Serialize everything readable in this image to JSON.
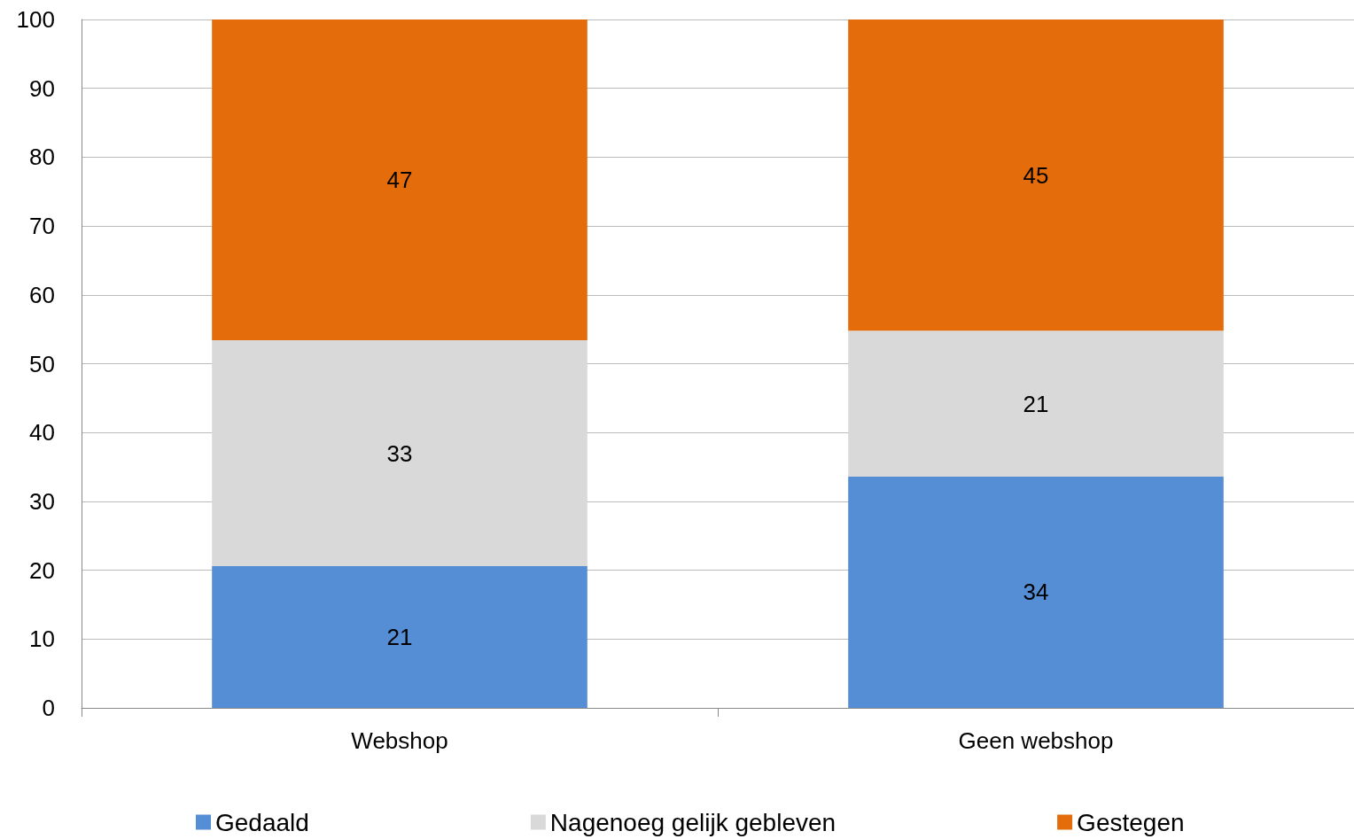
{
  "chart_data": {
    "type": "bar",
    "stacked": true,
    "categories": [
      "Webshop",
      "Geen webshop"
    ],
    "series": [
      {
        "name": "Gedaald",
        "color": "#558ed5",
        "values": [
          20.6,
          33.6
        ],
        "value_labels": [
          "21",
          "34"
        ]
      },
      {
        "name": "Nagenoeg gelijk gebleven",
        "color": "#d9d9d9",
        "values": [
          32.8,
          21.2
        ],
        "value_labels": [
          "33",
          "21"
        ]
      },
      {
        "name": "Gestegen",
        "color": "#e46c0a",
        "values": [
          46.6,
          45.2
        ],
        "value_labels": [
          "47",
          "45"
        ]
      }
    ],
    "ylim": [
      0,
      100
    ],
    "yticks": [
      0,
      10,
      20,
      30,
      40,
      50,
      60,
      70,
      80,
      90,
      100
    ],
    "grid": "y",
    "legend": "bottom"
  }
}
